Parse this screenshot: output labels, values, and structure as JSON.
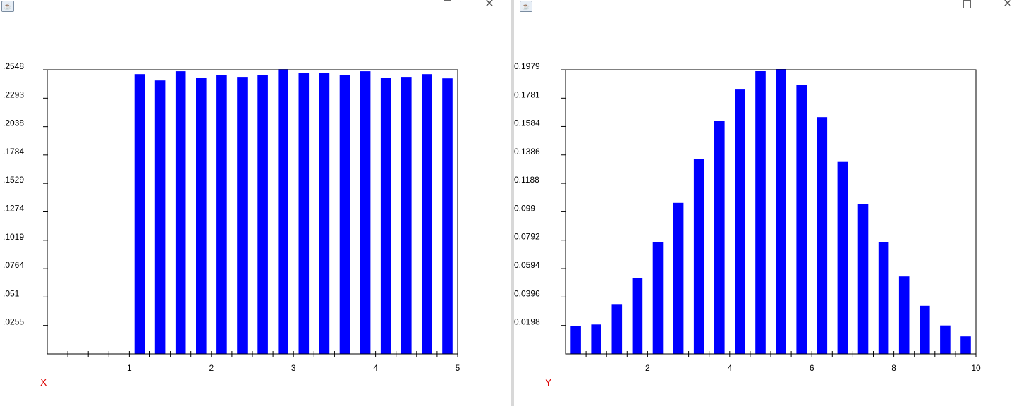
{
  "windows": [
    {
      "id": "left",
      "app_icon": "java-icon",
      "controls": {
        "minimize": "minimize-icon",
        "maximize": "maximize-icon",
        "close": "close-icon"
      },
      "axis_name": "X"
    },
    {
      "id": "right",
      "app_icon": "java-icon",
      "controls": {
        "minimize": "minimize-icon",
        "maximize": "maximize-icon",
        "close": "close-icon"
      },
      "axis_name": "Y"
    }
  ],
  "colors": {
    "bar": "#0000ff",
    "axis_name": "#dd0000",
    "frame": "#000000"
  },
  "chart_data": [
    {
      "type": "bar",
      "title": "",
      "xlabel": "X",
      "ylabel": "",
      "grid": false,
      "xlim": [
        0,
        5
      ],
      "ylim": [
        0,
        0.2548
      ],
      "bar_width": 0.125,
      "x": [
        1.125,
        1.375,
        1.625,
        1.875,
        2.125,
        2.375,
        2.625,
        2.875,
        3.125,
        3.375,
        3.625,
        3.875,
        4.125,
        4.375,
        4.625,
        4.875
      ],
      "values": [
        0.2509,
        0.2452,
        0.2535,
        0.2478,
        0.2503,
        0.2484,
        0.2503,
        0.2554,
        0.2522,
        0.2522,
        0.2503,
        0.2535,
        0.2478,
        0.2484,
        0.2509,
        0.2471
      ],
      "x_ticks": [
        1,
        2,
        3,
        4,
        5
      ],
      "x_minor_ticks": [
        0.25,
        0.5,
        0.75,
        1.25,
        1.5,
        1.75,
        2.25,
        2.5,
        2.75,
        3.25,
        3.5,
        3.75,
        4.25,
        4.5,
        4.75
      ],
      "y_ticks": [
        0.0255,
        0.051,
        0.0764,
        0.1019,
        0.1274,
        0.1529,
        0.1784,
        0.2038,
        0.2293,
        0.2548
      ],
      "y_tick_labels": [
        ".0255",
        ".051",
        ".0764",
        ".1019",
        ".1274",
        ".1529",
        ".1784",
        ".2038",
        ".2293",
        ".2548"
      ]
    },
    {
      "type": "bar",
      "title": "",
      "xlabel": "Y",
      "ylabel": "",
      "grid": false,
      "xlim": [
        0,
        10
      ],
      "ylim": [
        0,
        0.1979
      ],
      "bar_width": 0.25,
      "x": [
        0.25,
        0.75,
        1.25,
        1.75,
        2.25,
        2.75,
        3.25,
        3.75,
        4.25,
        4.75,
        5.25,
        5.75,
        6.25,
        6.75,
        7.25,
        7.75,
        8.25,
        8.75,
        9.25,
        9.75
      ],
      "values": [
        0.0193,
        0.0205,
        0.0347,
        0.0526,
        0.0779,
        0.1052,
        0.1359,
        0.1622,
        0.1846,
        0.1969,
        0.1985,
        0.1872,
        0.1649,
        0.1337,
        0.1042,
        0.0779,
        0.0539,
        0.0335,
        0.0198,
        0.0122
      ],
      "x_ticks": [
        2,
        4,
        6,
        8,
        10
      ],
      "x_minor_ticks": [
        0.5,
        1,
        1.5,
        2.5,
        3,
        3.5,
        4.5,
        5,
        5.5,
        6.5,
        7,
        7.5,
        8.5,
        9,
        9.5
      ],
      "y_ticks": [
        0.0198,
        0.0396,
        0.0594,
        0.0792,
        0.099,
        0.1188,
        0.1386,
        0.1584,
        0.1781,
        0.1979
      ],
      "y_tick_labels": [
        "0.0198",
        "0.0396",
        "0.0594",
        "0.0792",
        "0.099",
        "0.1188",
        "0.1386",
        "0.1584",
        "0.1781",
        "0.1979"
      ]
    }
  ]
}
